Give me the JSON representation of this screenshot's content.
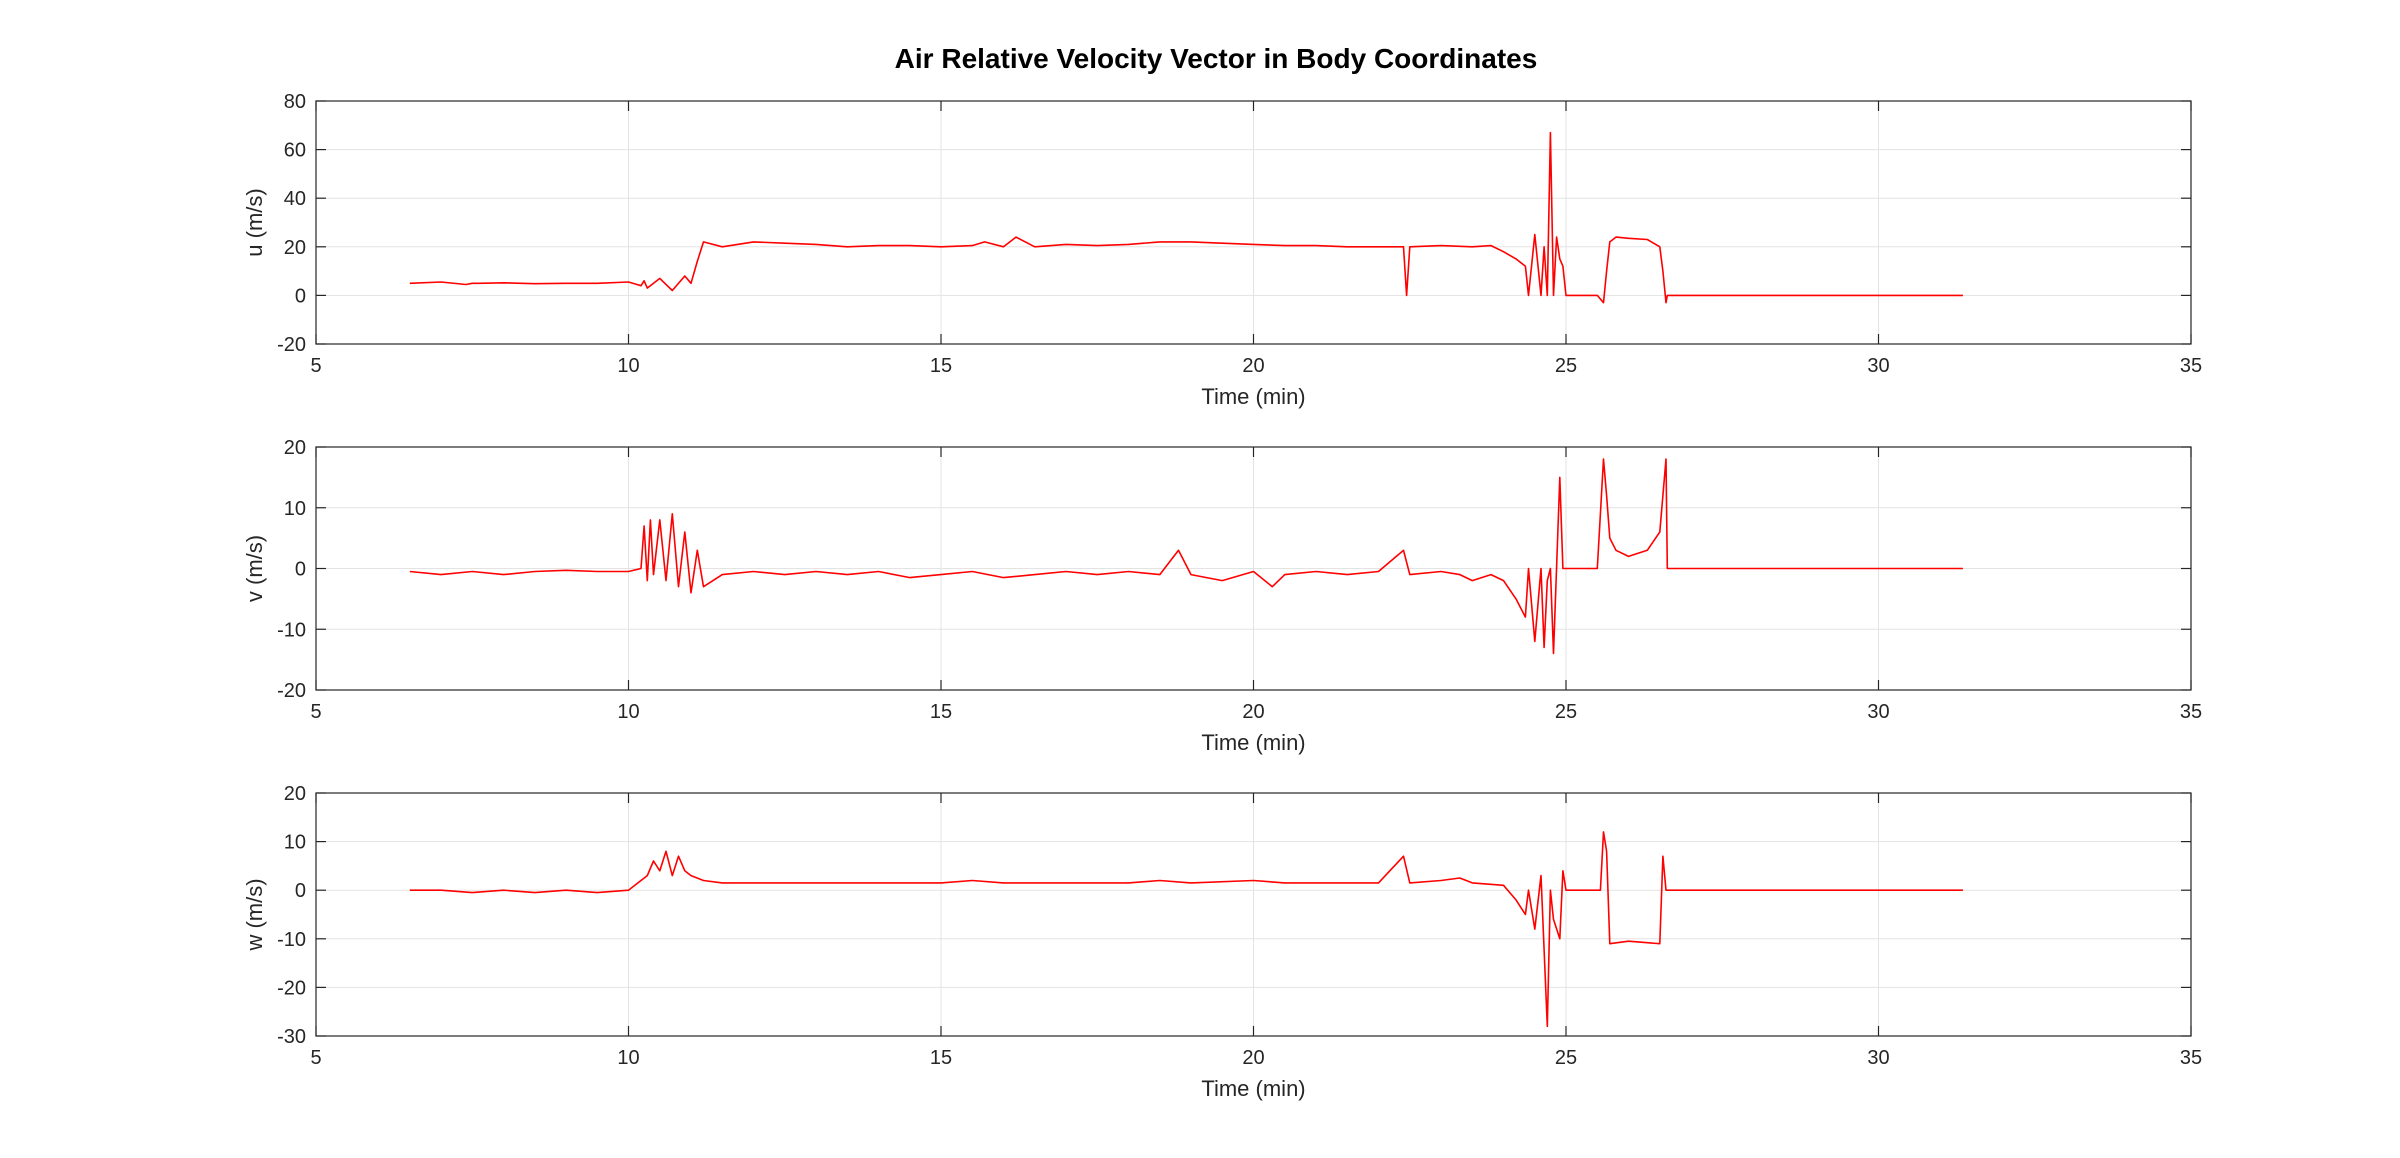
{
  "figure": {
    "title": "Air Relative Velocity Vector in Body Coordinates"
  },
  "colors": {
    "series": "#ff0000",
    "grid": "#e3e3e3",
    "axis": "#262626"
  },
  "chart_data": [
    {
      "type": "line",
      "ylabel": "u (m/s)",
      "xlabel": "Time (min)",
      "xlim": [
        5,
        35
      ],
      "ylim": [
        -20,
        80
      ],
      "xticks": [
        5,
        10,
        15,
        20,
        25,
        30,
        35
      ],
      "yticks": [
        -20,
        0,
        20,
        40,
        60,
        80
      ],
      "grid": true,
      "series": [
        {
          "x": [
            6.5,
            7.0,
            7.4,
            7.5,
            7.6,
            8.0,
            8.5,
            9.0,
            9.5,
            10.0,
            10.2,
            10.25,
            10.3,
            10.5,
            10.7,
            10.9,
            11.0,
            11.1,
            11.2,
            11.5,
            12.0,
            12.5,
            13.0,
            13.5,
            14.0,
            14.5,
            15.0,
            15.5,
            15.7,
            16.0,
            16.2,
            16.5,
            17.0,
            17.5,
            18.0,
            18.5,
            19.0,
            19.5,
            20.0,
            20.5,
            21.0,
            21.5,
            22.0,
            22.4,
            22.45,
            22.5,
            23.0,
            23.5,
            23.8,
            24.0,
            24.2,
            24.35,
            24.4,
            24.5,
            24.6,
            24.65,
            24.7,
            24.75,
            24.8,
            24.85,
            24.9,
            24.95,
            25.0,
            25.05,
            25.1,
            25.5,
            25.6,
            25.65,
            25.7,
            25.8,
            26.0,
            26.3,
            26.5,
            26.55,
            26.6,
            26.62,
            27.0,
            28.0,
            29.0,
            30.0,
            31.0,
            31.35
          ],
          "y": [
            5,
            5.5,
            4.5,
            5,
            5,
            5.2,
            4.8,
            5,
            5,
            5.5,
            4,
            6,
            3,
            7,
            2,
            8,
            5,
            14,
            22,
            20,
            22,
            21.5,
            21,
            20,
            20.5,
            20.5,
            20,
            20.5,
            22,
            20,
            24,
            20,
            21,
            20.5,
            21,
            22,
            22,
            21.5,
            21,
            20.5,
            20.5,
            20,
            20,
            20,
            0,
            20,
            20.5,
            20,
            20.5,
            18,
            15,
            12,
            0,
            25,
            0,
            20,
            0,
            67,
            0,
            24,
            15,
            12,
            0,
            0,
            0,
            0,
            -3,
            10,
            22,
            24,
            23.5,
            23,
            20,
            10,
            -3,
            0,
            0,
            0,
            0,
            0,
            0,
            0
          ]
        }
      ]
    },
    {
      "type": "line",
      "ylabel": "v (m/s)",
      "xlabel": "Time (min)",
      "xlim": [
        5,
        35
      ],
      "ylim": [
        -20,
        20
      ],
      "xticks": [
        5,
        10,
        15,
        20,
        25,
        30,
        35
      ],
      "yticks": [
        -20,
        -10,
        0,
        10,
        20
      ],
      "grid": true,
      "series": [
        {
          "x": [
            6.5,
            7.0,
            7.5,
            8.0,
            8.5,
            9.0,
            9.5,
            10.0,
            10.2,
            10.25,
            10.3,
            10.35,
            10.4,
            10.5,
            10.6,
            10.7,
            10.8,
            10.9,
            11.0,
            11.1,
            11.2,
            11.5,
            12.0,
            12.5,
            13.0,
            13.5,
            14.0,
            14.5,
            15.0,
            15.5,
            16.0,
            16.5,
            17.0,
            17.5,
            18.0,
            18.5,
            18.8,
            19.0,
            19.5,
            20.0,
            20.3,
            20.5,
            21.0,
            21.5,
            22.0,
            22.4,
            22.5,
            23.0,
            23.3,
            23.5,
            23.8,
            24.0,
            24.2,
            24.35,
            24.4,
            24.5,
            24.6,
            24.65,
            24.7,
            24.75,
            24.8,
            24.9,
            24.95,
            25.0,
            25.05,
            25.1,
            25.5,
            25.6,
            25.65,
            25.7,
            25.8,
            26.0,
            26.3,
            26.5,
            26.6,
            26.62,
            27.0,
            28.0,
            29.0,
            30.0,
            31.0,
            31.35
          ],
          "y": [
            -0.5,
            -1,
            -0.5,
            -1,
            -0.5,
            -0.3,
            -0.5,
            -0.5,
            0,
            7,
            -2,
            8,
            -1,
            8,
            -2,
            9,
            -3,
            6,
            -4,
            3,
            -3,
            -1,
            -0.5,
            -1,
            -0.5,
            -1,
            -0.5,
            -1.5,
            -1,
            -0.5,
            -1.5,
            -1,
            -0.5,
            -1,
            -0.5,
            -1,
            3,
            -1,
            -2,
            -0.5,
            -3,
            -1,
            -0.5,
            -1,
            -0.5,
            3,
            -1,
            -0.5,
            -1,
            -2,
            -1,
            -2,
            -5,
            -8,
            0,
            -12,
            0,
            -13,
            -2,
            0,
            -14,
            15,
            0,
            0,
            0,
            0,
            0,
            18,
            12,
            5,
            3,
            2,
            3,
            6,
            18,
            0,
            0,
            0,
            0,
            0,
            0,
            0
          ]
        }
      ]
    },
    {
      "type": "line",
      "ylabel": "w (m/s)",
      "xlabel": "Time (min)",
      "xlim": [
        5,
        35
      ],
      "ylim": [
        -30,
        20
      ],
      "xticks": [
        5,
        10,
        15,
        20,
        25,
        30,
        35
      ],
      "yticks": [
        -30,
        -20,
        -10,
        0,
        10,
        20
      ],
      "grid": true,
      "series": [
        {
          "x": [
            6.5,
            7.0,
            7.5,
            8.0,
            8.5,
            9.0,
            9.5,
            10.0,
            10.3,
            10.4,
            10.5,
            10.6,
            10.7,
            10.8,
            10.9,
            11.0,
            11.2,
            11.5,
            12.0,
            13.0,
            14.0,
            15.0,
            15.5,
            16.0,
            17.0,
            18.0,
            18.5,
            19.0,
            20.0,
            20.5,
            21.0,
            22.0,
            22.4,
            22.5,
            23.0,
            23.3,
            23.5,
            24.0,
            24.2,
            24.35,
            24.4,
            24.5,
            24.6,
            24.7,
            24.75,
            24.8,
            24.9,
            24.95,
            25.0,
            25.05,
            25.5,
            25.55,
            25.6,
            25.65,
            25.7,
            26.0,
            26.5,
            26.55,
            26.6,
            26.62,
            27.0,
            28.0,
            29.0,
            30.0,
            31.0,
            31.35
          ],
          "y": [
            0,
            0,
            -0.5,
            0,
            -0.5,
            0,
            -0.5,
            0,
            3,
            6,
            4,
            8,
            3,
            7,
            4,
            3,
            2,
            1.5,
            1.5,
            1.5,
            1.5,
            1.5,
            2,
            1.5,
            1.5,
            1.5,
            2,
            1.5,
            2,
            1.5,
            1.5,
            1.5,
            7,
            1.5,
            2,
            2.5,
            1.5,
            1,
            -2,
            -5,
            0,
            -8,
            3,
            -28,
            0,
            -6,
            -10,
            4,
            0,
            0,
            0,
            0,
            12,
            8,
            -11,
            -10.5,
            -11,
            7,
            0,
            0,
            0,
            0,
            0,
            0,
            0,
            0
          ]
        }
      ]
    }
  ]
}
